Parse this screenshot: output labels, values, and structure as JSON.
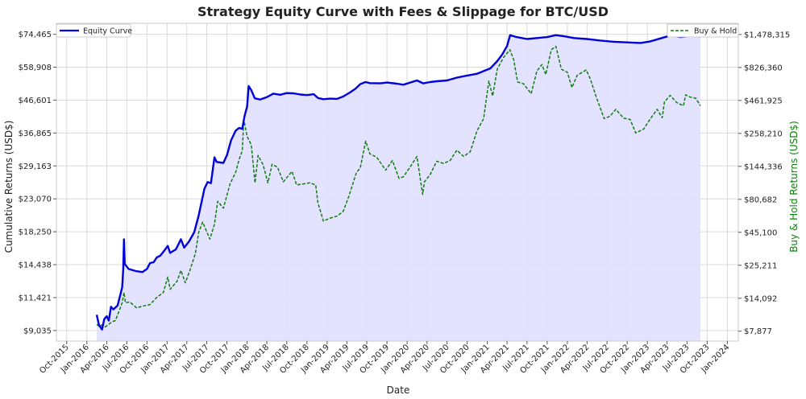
{
  "chart_data": {
    "type": "line",
    "title": "Strategy Equity Curve with Fees & Slippage for BTC/USD",
    "xlabel": "Date",
    "ylabel_left": "Cumulative Returns (USD$)",
    "ylabel_right": "Buy & Hold Returns (USD$)",
    "y_scale": "log",
    "grid": true,
    "left_ticks": [
      "$9,035",
      "$11,421",
      "$14,438",
      "$18,250",
      "$23,070",
      "$29,163",
      "$36,865",
      "$46,601",
      "$58,908",
      "$74,465"
    ],
    "left_tick_values": [
      9035,
      11421,
      14438,
      18250,
      23070,
      29163,
      36865,
      46601,
      58908,
      74465
    ],
    "left_ylim": [
      8380,
      80500
    ],
    "right_ticks": [
      "$7,877",
      "$14,092",
      "$25,211",
      "$45,100",
      "$80,682",
      "$144,336",
      "$258,210",
      "$461,925",
      "$826,360",
      "$1,478,315"
    ],
    "right_tick_values": [
      7877,
      14092,
      25211,
      45100,
      80682,
      144336,
      258210,
      461925,
      826360,
      1478315
    ],
    "right_ylim": [
      6620,
      1800000
    ],
    "x_ticks": [
      "Oct-2015",
      "Jan-2016",
      "Apr-2016",
      "Jul-2016",
      "Oct-2016",
      "Jan-2017",
      "Apr-2017",
      "Jul-2017",
      "Oct-2017",
      "Jan-2018",
      "Apr-2018",
      "Jul-2018",
      "Oct-2018",
      "Jan-2019",
      "Apr-2019",
      "Jul-2019",
      "Oct-2019",
      "Jan-2020",
      "Apr-2020",
      "Jul-2020",
      "Oct-2020",
      "Jan-2021",
      "Apr-2021",
      "Jul-2021",
      "Oct-2021",
      "Jan-2022",
      "Apr-2022",
      "Jul-2022",
      "Oct-2022",
      "Jan-2023",
      "Apr-2023",
      "Jul-2023",
      "Oct-2023",
      "Jan-2024"
    ],
    "xlim": [
      "2015-08-15",
      "2024-02-20"
    ],
    "legend": [
      {
        "name": "Equity Curve",
        "placement": "upper-left",
        "color": "#0000dd",
        "style": "solid"
      },
      {
        "name": "Buy & Hold",
        "placement": "upper-right",
        "color": "#107d10",
        "style": "dashed"
      }
    ],
    "series": [
      {
        "name": "Equity Curve",
        "axis": "left",
        "color": "#0000dd",
        "fill": "#e2e2ff",
        "points": [
          [
            "2016-02-15",
            10100
          ],
          [
            "2016-02-25",
            9400
          ],
          [
            "2016-03-10",
            9100
          ],
          [
            "2016-03-20",
            9800
          ],
          [
            "2016-04-01",
            10000
          ],
          [
            "2016-04-10",
            9700
          ],
          [
            "2016-04-20",
            10700
          ],
          [
            "2016-05-01",
            10500
          ],
          [
            "2016-05-20",
            10800
          ],
          [
            "2016-06-01",
            11600
          ],
          [
            "2016-06-10",
            12300
          ],
          [
            "2016-06-15",
            14000
          ],
          [
            "2016-06-18",
            17300
          ],
          [
            "2016-06-22",
            14500
          ],
          [
            "2016-07-10",
            14000
          ],
          [
            "2016-08-10",
            13800
          ],
          [
            "2016-09-10",
            13700
          ],
          [
            "2016-10-01",
            14000
          ],
          [
            "2016-10-15",
            14600
          ],
          [
            "2016-11-01",
            14700
          ],
          [
            "2016-11-15",
            15200
          ],
          [
            "2016-12-01",
            15400
          ],
          [
            "2016-12-20",
            16000
          ],
          [
            "2017-01-04",
            16500
          ],
          [
            "2017-01-15",
            15700
          ],
          [
            "2017-02-10",
            16100
          ],
          [
            "2017-03-05",
            17300
          ],
          [
            "2017-03-20",
            16300
          ],
          [
            "2017-04-10",
            17000
          ],
          [
            "2017-05-05",
            18200
          ],
          [
            "2017-05-25",
            20500
          ],
          [
            "2017-06-10",
            23000
          ],
          [
            "2017-06-20",
            24800
          ],
          [
            "2017-07-05",
            26000
          ],
          [
            "2017-07-20",
            25800
          ],
          [
            "2017-08-05",
            31000
          ],
          [
            "2017-08-15",
            30000
          ],
          [
            "2017-09-15",
            29800
          ],
          [
            "2017-10-01",
            31500
          ],
          [
            "2017-10-20",
            35000
          ],
          [
            "2017-11-10",
            37500
          ],
          [
            "2017-11-25",
            38200
          ],
          [
            "2017-12-10",
            38000
          ],
          [
            "2017-12-20",
            41500
          ],
          [
            "2018-01-01",
            44500
          ],
          [
            "2018-01-08",
            51500
          ],
          [
            "2018-01-20",
            50000
          ],
          [
            "2018-02-05",
            47200
          ],
          [
            "2018-03-01",
            46800
          ],
          [
            "2018-04-01",
            47600
          ],
          [
            "2018-05-01",
            48800
          ],
          [
            "2018-06-01",
            48400
          ],
          [
            "2018-07-01",
            49000
          ],
          [
            "2018-08-01",
            48900
          ],
          [
            "2018-09-01",
            48500
          ],
          [
            "2018-10-01",
            48300
          ],
          [
            "2018-11-01",
            48600
          ],
          [
            "2018-11-20",
            47300
          ],
          [
            "2018-12-15",
            46900
          ],
          [
            "2019-01-15",
            47100
          ],
          [
            "2019-02-15",
            47000
          ],
          [
            "2019-03-15",
            47800
          ],
          [
            "2019-04-15",
            49200
          ],
          [
            "2019-05-10",
            50500
          ],
          [
            "2019-06-01",
            52200
          ],
          [
            "2019-06-25",
            53000
          ],
          [
            "2019-07-15",
            52600
          ],
          [
            "2019-09-01",
            52500
          ],
          [
            "2019-10-01",
            52800
          ],
          [
            "2019-11-15",
            52400
          ],
          [
            "2019-12-15",
            52000
          ],
          [
            "2020-01-15",
            52800
          ],
          [
            "2020-02-15",
            53600
          ],
          [
            "2020-03-15",
            52500
          ],
          [
            "2020-04-15",
            53000
          ],
          [
            "2020-05-15",
            53300
          ],
          [
            "2020-07-01",
            53600
          ],
          [
            "2020-08-15",
            54700
          ],
          [
            "2020-10-01",
            55500
          ],
          [
            "2020-11-15",
            56200
          ],
          [
            "2020-12-15",
            57300
          ],
          [
            "2021-01-15",
            58400
          ],
          [
            "2021-02-15",
            61500
          ],
          [
            "2021-03-10",
            64500
          ],
          [
            "2021-04-01",
            68500
          ],
          [
            "2021-04-15",
            74000
          ],
          [
            "2021-05-15",
            73000
          ],
          [
            "2021-07-01",
            72000
          ],
          [
            "2021-08-15",
            72500
          ],
          [
            "2021-10-01",
            73000
          ],
          [
            "2021-11-10",
            74000
          ],
          [
            "2021-12-15",
            73500
          ],
          [
            "2022-02-01",
            72500
          ],
          [
            "2022-04-01",
            72000
          ],
          [
            "2022-06-01",
            71200
          ],
          [
            "2022-08-01",
            70600
          ],
          [
            "2022-10-01",
            70300
          ],
          [
            "2022-12-01",
            70000
          ],
          [
            "2023-01-15",
            70800
          ],
          [
            "2023-03-01",
            72300
          ],
          [
            "2023-04-15",
            73800
          ],
          [
            "2023-06-01",
            73000
          ],
          [
            "2023-07-15",
            73500
          ],
          [
            "2023-08-31",
            73300
          ]
        ]
      },
      {
        "name": "Buy & Hold",
        "axis": "right",
        "color": "#107d10",
        "points": [
          [
            "2016-02-15",
            8900
          ],
          [
            "2016-02-25",
            8600
          ],
          [
            "2016-03-10",
            8800
          ],
          [
            "2016-03-25",
            8500
          ],
          [
            "2016-04-10",
            8900
          ],
          [
            "2016-04-25",
            9300
          ],
          [
            "2016-05-10",
            9500
          ],
          [
            "2016-05-25",
            11000
          ],
          [
            "2016-06-10",
            13000
          ],
          [
            "2016-06-18",
            15600
          ],
          [
            "2016-06-25",
            13000
          ],
          [
            "2016-07-15",
            13200
          ],
          [
            "2016-08-15",
            11900
          ],
          [
            "2016-09-15",
            12300
          ],
          [
            "2016-10-15",
            12600
          ],
          [
            "2016-11-15",
            14300
          ],
          [
            "2016-12-15",
            15600
          ],
          [
            "2017-01-04",
            20500
          ],
          [
            "2017-01-15",
            16500
          ],
          [
            "2017-02-15",
            19000
          ],
          [
            "2017-03-05",
            23000
          ],
          [
            "2017-03-25",
            18500
          ],
          [
            "2017-04-15",
            23000
          ],
          [
            "2017-05-10",
            31000
          ],
          [
            "2017-05-25",
            45000
          ],
          [
            "2017-06-12",
            54000
          ],
          [
            "2017-07-15",
            40000
          ],
          [
            "2017-08-05",
            52000
          ],
          [
            "2017-08-20",
            78000
          ],
          [
            "2017-09-15",
            69000
          ],
          [
            "2017-10-15",
            106000
          ],
          [
            "2017-11-10",
            130000
          ],
          [
            "2017-11-25",
            162000
          ],
          [
            "2017-12-10",
            190000
          ],
          [
            "2017-12-17",
            330000
          ],
          [
            "2018-01-01",
            245000
          ],
          [
            "2018-01-20",
            210000
          ],
          [
            "2018-02-06",
            108000
          ],
          [
            "2018-02-20",
            175000
          ],
          [
            "2018-03-15",
            149000
          ],
          [
            "2018-04-06",
            108000
          ],
          [
            "2018-04-25",
            150000
          ],
          [
            "2018-05-20",
            142000
          ],
          [
            "2018-06-15",
            110000
          ],
          [
            "2018-07-25",
            132000
          ],
          [
            "2018-08-15",
            104000
          ],
          [
            "2018-09-15",
            106000
          ],
          [
            "2018-10-15",
            108000
          ],
          [
            "2018-11-10",
            104000
          ],
          [
            "2018-11-20",
            76000
          ],
          [
            "2018-12-15",
            55000
          ],
          [
            "2019-01-15",
            58000
          ],
          [
            "2019-02-15",
            60000
          ],
          [
            "2019-03-15",
            65000
          ],
          [
            "2019-04-10",
            85000
          ],
          [
            "2019-05-15",
            130000
          ],
          [
            "2019-06-01",
            140000
          ],
          [
            "2019-06-26",
            225000
          ],
          [
            "2019-07-15",
            180000
          ],
          [
            "2019-08-15",
            170000
          ],
          [
            "2019-09-25",
            135000
          ],
          [
            "2019-10-26",
            160000
          ],
          [
            "2019-11-25",
            117000
          ],
          [
            "2019-12-15",
            120000
          ],
          [
            "2020-01-15",
            143000
          ],
          [
            "2020-02-15",
            172000
          ],
          [
            "2020-03-12",
            88000
          ],
          [
            "2020-03-20",
            110000
          ],
          [
            "2020-04-15",
            125000
          ],
          [
            "2020-05-15",
            158000
          ],
          [
            "2020-06-15",
            152000
          ],
          [
            "2020-07-15",
            160000
          ],
          [
            "2020-08-15",
            192000
          ],
          [
            "2020-09-15",
            172000
          ],
          [
            "2020-10-15",
            187000
          ],
          [
            "2020-11-15",
            270000
          ],
          [
            "2020-12-15",
            335000
          ],
          [
            "2021-01-08",
            650000
          ],
          [
            "2021-01-25",
            500000
          ],
          [
            "2021-02-15",
            800000
          ],
          [
            "2021-03-15",
            980000
          ],
          [
            "2021-04-14",
            1130000
          ],
          [
            "2021-05-01",
            950000
          ],
          [
            "2021-05-19",
            640000
          ],
          [
            "2021-06-15",
            620000
          ],
          [
            "2021-07-20",
            520000
          ],
          [
            "2021-08-15",
            775000
          ],
          [
            "2021-09-07",
            870000
          ],
          [
            "2021-09-25",
            730000
          ],
          [
            "2021-10-20",
            1130000
          ],
          [
            "2021-11-10",
            1200000
          ],
          [
            "2021-12-05",
            800000
          ],
          [
            "2022-01-01",
            760000
          ],
          [
            "2022-01-22",
            580000
          ],
          [
            "2022-02-15",
            720000
          ],
          [
            "2022-03-28",
            790000
          ],
          [
            "2022-04-15",
            680000
          ],
          [
            "2022-05-15",
            480000
          ],
          [
            "2022-06-18",
            335000
          ],
          [
            "2022-07-15",
            350000
          ],
          [
            "2022-08-10",
            395000
          ],
          [
            "2022-09-15",
            338000
          ],
          [
            "2022-10-15",
            330000
          ],
          [
            "2022-11-09",
            260000
          ],
          [
            "2022-12-15",
            278000
          ],
          [
            "2023-01-15",
            335000
          ],
          [
            "2023-02-15",
            395000
          ],
          [
            "2023-03-10",
            340000
          ],
          [
            "2023-03-20",
            450000
          ],
          [
            "2023-04-15",
            505000
          ],
          [
            "2023-05-15",
            445000
          ],
          [
            "2023-06-15",
            420000
          ],
          [
            "2023-06-25",
            510000
          ],
          [
            "2023-07-15",
            490000
          ],
          [
            "2023-08-10",
            480000
          ],
          [
            "2023-08-31",
            420000
          ]
        ]
      }
    ]
  }
}
